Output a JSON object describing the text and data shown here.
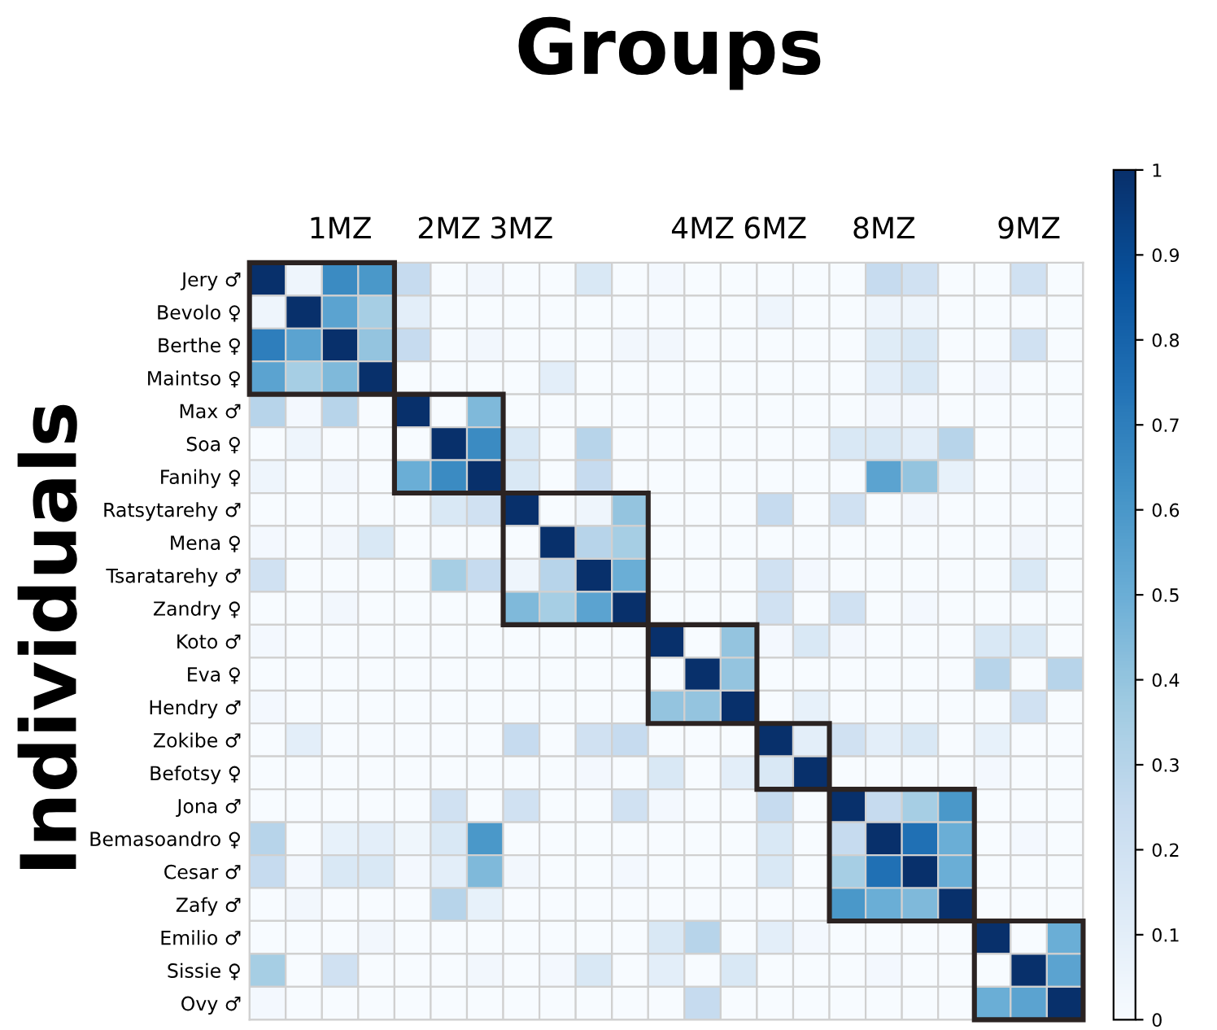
{
  "chart_data": {
    "type": "heatmap",
    "title": "Groups",
    "ylabel": "Individuals",
    "categories": [
      null,
      null,
      "1MZ",
      null,
      null,
      "2MZ",
      null,
      "3MZ",
      null,
      null,
      null,
      null,
      "4MZ",
      null,
      "6MZ",
      null,
      null,
      "8MZ",
      null,
      null,
      null,
      "9MZ",
      null
    ],
    "y_categories": [
      "Jery ♂",
      "Bevolo ♀",
      "Berthe ♀",
      "Maintso ♀",
      "Max ♂",
      "Soa ♀",
      "Fanihy ♀",
      "Ratsytarehy ♂",
      "Mena ♀",
      "Tsaratarehy ♂",
      "Zandry ♀",
      "Koto ♂",
      "Eva ♀",
      "Hendry ♂",
      "Zokibe ♂",
      "Befotsy ♀",
      "Jona ♂",
      "Bemasoandro ♀",
      "Cesar ♂",
      "Zafy ♂",
      "Emilio ♂",
      "Sissie ♀",
      "Ovy ♂"
    ],
    "cells": [
      [
        1,
        0.05,
        0.65,
        0.6,
        0.25,
        0,
        0.03,
        0,
        0,
        0.15,
        0,
        0.02,
        0,
        0,
        0,
        0,
        0,
        0.25,
        0.2,
        0,
        0,
        0.2,
        0
      ],
      [
        0.05,
        1,
        0.55,
        0.35,
        0.1,
        0,
        0,
        0,
        0,
        0,
        0,
        0,
        0,
        0,
        0.05,
        0,
        0,
        0.05,
        0.05,
        0,
        0,
        0,
        0
      ],
      [
        0.7,
        0.55,
        1,
        0.4,
        0.25,
        0,
        0.03,
        0,
        0,
        0,
        0.03,
        0.03,
        0,
        0,
        0,
        0,
        0,
        0.12,
        0.15,
        0,
        0,
        0.2,
        0
      ],
      [
        0.55,
        0.35,
        0.45,
        1,
        0,
        0,
        0,
        0,
        0.1,
        0,
        0,
        0,
        0,
        0,
        0,
        0,
        0,
        0.1,
        0.15,
        0,
        0.02,
        0,
        0
      ],
      [
        0.3,
        0.02,
        0.3,
        0,
        1,
        0,
        0.45,
        0,
        0,
        0,
        0,
        0,
        0,
        0,
        0,
        0,
        0,
        0.03,
        0.02,
        0,
        0,
        0,
        0
      ],
      [
        0,
        0.05,
        0,
        0,
        0,
        1,
        0.65,
        0.15,
        0,
        0.3,
        0,
        0,
        0,
        0,
        0,
        0,
        0.15,
        0.15,
        0.1,
        0.3,
        0,
        0,
        0
      ],
      [
        0.05,
        0,
        0.03,
        0,
        0.5,
        0.65,
        1,
        0.15,
        0,
        0.25,
        0,
        0,
        0,
        0,
        0,
        0,
        0,
        0.55,
        0.4,
        0.08,
        0,
        0.02,
        0
      ],
      [
        0,
        0,
        0,
        0,
        0,
        0.15,
        0.2,
        1,
        0,
        0.05,
        0.4,
        0,
        0,
        0,
        0.25,
        0,
        0.2,
        0,
        0.03,
        0,
        0,
        0,
        0
      ],
      [
        0.02,
        0,
        0.03,
        0.15,
        0,
        0,
        0,
        0,
        1,
        0.3,
        0.35,
        0,
        0,
        0,
        0,
        0,
        0,
        0,
        0,
        0,
        0,
        0.03,
        0
      ],
      [
        0.2,
        0,
        0,
        0,
        0,
        0.35,
        0.25,
        0.05,
        0.3,
        1,
        0.5,
        0,
        0,
        0,
        0.2,
        0.02,
        0,
        0,
        0,
        0,
        0,
        0.15,
        0
      ],
      [
        0,
        0,
        0.03,
        0,
        0,
        0,
        0,
        0.45,
        0.35,
        0.55,
        1,
        0,
        0,
        0,
        0.2,
        0,
        0.2,
        0,
        0.02,
        0,
        0,
        0,
        0
      ],
      [
        0.02,
        0,
        0,
        0,
        0,
        0,
        0,
        0,
        0,
        0,
        0,
        1,
        0,
        0.4,
        0.02,
        0.15,
        0.02,
        0,
        0,
        0,
        0.15,
        0.15,
        0
      ],
      [
        0,
        0,
        0,
        0,
        0,
        0,
        0,
        0,
        0,
        0,
        0,
        0,
        1,
        0.4,
        0,
        0,
        0,
        0,
        0,
        0,
        0.3,
        0,
        0.3
      ],
      [
        0.02,
        0,
        0,
        0,
        0,
        0,
        0,
        0,
        0,
        0,
        0,
        0.4,
        0.4,
        1,
        0,
        0.08,
        0,
        0,
        0,
        0,
        0,
        0.2,
        0
      ],
      [
        0,
        0.1,
        0,
        0,
        0,
        0,
        0,
        0.25,
        0,
        0.2,
        0.25,
        0,
        0,
        0,
        1,
        0.1,
        0.2,
        0.1,
        0.15,
        0,
        0.08,
        0,
        0
      ],
      [
        0,
        0,
        0,
        0,
        0,
        0,
        0,
        0,
        0,
        0.02,
        0,
        0.15,
        0,
        0.1,
        0.15,
        1,
        0,
        0,
        0,
        0,
        0.02,
        0,
        0
      ],
      [
        0,
        0,
        0,
        0,
        0,
        0.2,
        0,
        0.2,
        0,
        0,
        0.2,
        0.02,
        0,
        0,
        0.25,
        0,
        1,
        0.25,
        0.35,
        0.6,
        0,
        0,
        0
      ],
      [
        0.3,
        0,
        0.08,
        0.1,
        0.04,
        0.15,
        0.6,
        0,
        0,
        0,
        0,
        0,
        0,
        0,
        0.15,
        0,
        0.25,
        1,
        0.75,
        0.5,
        0,
        0.02,
        0
      ],
      [
        0.25,
        0.02,
        0.15,
        0.15,
        0.02,
        0.1,
        0.45,
        0.03,
        0,
        0,
        0.02,
        0,
        0,
        0,
        0.15,
        0,
        0.35,
        0.75,
        1,
        0.5,
        0,
        0,
        0
      ],
      [
        0,
        0.03,
        0,
        0,
        0,
        0.3,
        0.08,
        0,
        0,
        0,
        0,
        0,
        0,
        0,
        0,
        0,
        0.6,
        0.5,
        0.45,
        1,
        0,
        0,
        0
      ],
      [
        0,
        0,
        0,
        0.03,
        0,
        0,
        0,
        0,
        0,
        0,
        0,
        0.15,
        0.3,
        0,
        0.1,
        0.02,
        0,
        0,
        0,
        0,
        1,
        0,
        0.5
      ],
      [
        0.35,
        0,
        0.2,
        0,
        0,
        0,
        0.03,
        0,
        0.02,
        0.15,
        0,
        0.1,
        0,
        0.15,
        0,
        0,
        0,
        0.02,
        0,
        0,
        0,
        1,
        0.55
      ],
      [
        0.02,
        0,
        0,
        0,
        0,
        0,
        0,
        0,
        0,
        0,
        0,
        0,
        0.25,
        0,
        0,
        0,
        0,
        0,
        0,
        0,
        0.5,
        0.55,
        1
      ]
    ],
    "clim": [
      0,
      1
    ],
    "cticks": [
      0,
      0.1,
      0.2,
      0.3,
      0.4,
      0.5,
      0.6,
      0.7,
      0.8,
      0.9,
      1
    ]
  }
}
